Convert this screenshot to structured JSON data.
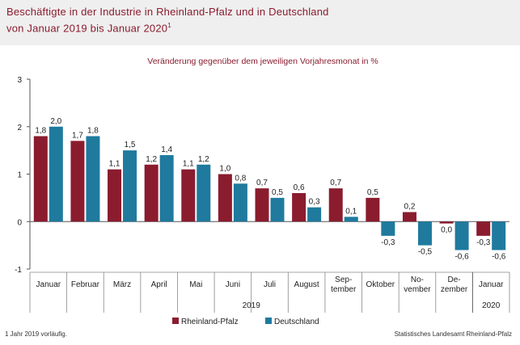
{
  "header": {
    "title_line1": "Beschäftigte in der Industrie in Rheinland-Pfalz und in Deutschland",
    "title_line2": "von Januar 2019 bis Januar 2020",
    "title_sup": "1"
  },
  "footer": {
    "footnote": "1 Jahr 2019 vorläufig.",
    "source": "Statistisches Landesamt Rheinland-Pfalz"
  },
  "colors": {
    "rlp": "#8a1c2e",
    "de": "#1f7a9e",
    "header_bg": "#efefef"
  },
  "chart_data": {
    "type": "bar",
    "subtitle": "Veränderung gegenüber dem jeweiligen Vorjahresmonat in %",
    "categories": [
      [
        "Januar"
      ],
      [
        "Februar"
      ],
      [
        "März"
      ],
      [
        "April"
      ],
      [
        "Mai"
      ],
      [
        "Juni"
      ],
      [
        "Juli"
      ],
      [
        "August"
      ],
      [
        "Sep-",
        "tember"
      ],
      [
        "Oktober"
      ],
      [
        "No-",
        "vember"
      ],
      [
        "De-",
        "zember"
      ],
      [
        "Januar"
      ]
    ],
    "year_groups": [
      {
        "label": "2019",
        "start": 0,
        "end": 11
      },
      {
        "label": "2020",
        "start": 12,
        "end": 12
      }
    ],
    "series": [
      {
        "name": "Rheinland-Pfalz",
        "color": "#8a1c2e",
        "values": [
          1.8,
          1.7,
          1.1,
          1.2,
          1.1,
          1.0,
          0.7,
          0.6,
          0.7,
          0.5,
          0.2,
          -0.04,
          -0.3
        ],
        "labels": [
          "1,8",
          "1,7",
          "1,1",
          "1,2",
          "1,1",
          "1,0",
          "0,7",
          "0,6",
          "0,7",
          "0,5",
          "0,2",
          "0,0",
          "-0,3"
        ]
      },
      {
        "name": "Deutschland",
        "color": "#1f7a9e",
        "values": [
          2.0,
          1.8,
          1.5,
          1.4,
          1.2,
          0.8,
          0.5,
          0.3,
          0.1,
          -0.3,
          -0.5,
          -0.6,
          -0.6
        ],
        "labels": [
          "2,0",
          "1,8",
          "1,5",
          "1,4",
          "1,2",
          "0,8",
          "0,5",
          "0,3",
          "0,1",
          "-0,3",
          "-0,5",
          "-0,6",
          "-0,6"
        ]
      }
    ],
    "ylim": [
      -1,
      3
    ],
    "yticks": [
      -1,
      0,
      1,
      2,
      3
    ],
    "legend_position": "bottom",
    "grid": false
  }
}
